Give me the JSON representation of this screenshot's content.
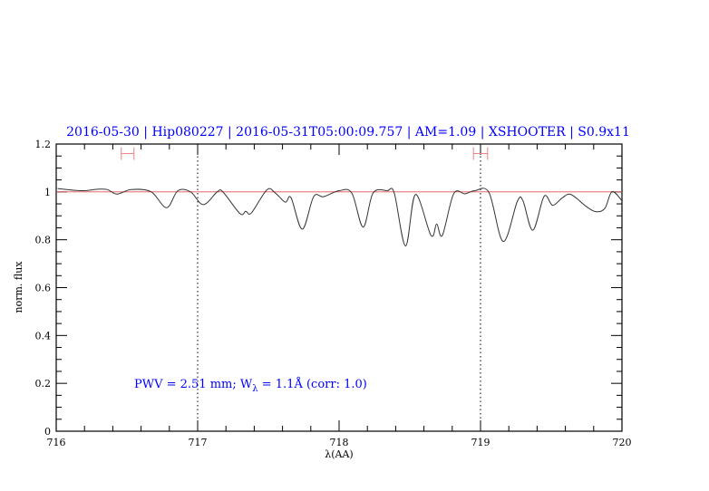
{
  "chart_data": {
    "type": "line",
    "title": "2016-05-30 | Hip080227 | 2016-05-31T05:00:09.757 | AM=1.09 | XSHOOTER | S0.9x11",
    "xlabel": "λ(AA)",
    "ylabel": "norm. flux",
    "xlim": [
      716,
      720
    ],
    "ylim": [
      0,
      1.2
    ],
    "xticks": [
      716,
      717,
      718,
      719,
      720
    ],
    "yticks": [
      0,
      0.2,
      0.4,
      0.6,
      0.8,
      1,
      1.2
    ],
    "ytick_labels": [
      "0",
      "0.2",
      "0.4",
      "0.6",
      "0.8",
      "1",
      "1.2"
    ],
    "grid": false,
    "continuum_level": 1,
    "vertical_markers": [
      717,
      719
    ],
    "error_bars": [
      {
        "x_range": [
          716.46,
          716.55
        ],
        "y": 1.16
      },
      {
        "x_range": [
          718.95,
          719.05
        ],
        "y": 1.16
      }
    ],
    "annotation": {
      "prefix": "PWV = 2.51 mm; W",
      "subscript": "λ",
      "suffix": " = 1.1Å (corr: 1.0)"
    },
    "colors": {
      "spectrum": "#333333",
      "continuum": "#e05050",
      "error_bar": "#f08080",
      "text": "#0000ff"
    },
    "series": [
      {
        "x": [
          716.01,
          716.18,
          716.29,
          716.36,
          716.43,
          716.53,
          716.67,
          716.78,
          716.86,
          716.95,
          717.04,
          717.14,
          717.18,
          717.3,
          717.34,
          717.38,
          717.49,
          717.55,
          717.62,
          717.66,
          717.74,
          717.82,
          717.89,
          718.0,
          718.09,
          718.17,
          718.24,
          718.34,
          718.39,
          718.47,
          718.54,
          718.65,
          718.69,
          718.73,
          718.81,
          718.89,
          718.96,
          719.06,
          719.16,
          719.26,
          719.3,
          719.37,
          719.45,
          719.51,
          719.58,
          719.64,
          719.75,
          719.82,
          719.88,
          719.93,
          720.0
        ],
        "y": [
          1.014,
          1.005,
          1.011,
          1.01,
          0.991,
          1.01,
          1.001,
          0.934,
          1.005,
          1.0,
          0.947,
          1.001,
          0.999,
          0.909,
          0.919,
          0.912,
          1.009,
          0.995,
          0.957,
          0.976,
          0.844,
          0.98,
          0.98,
          1.005,
          0.995,
          0.853,
          0.995,
          1.005,
          0.995,
          0.774,
          0.989,
          0.818,
          0.866,
          0.818,
          0.992,
          0.992,
          1.005,
          0.997,
          0.793,
          0.96,
          0.963,
          0.84,
          0.982,
          0.944,
          0.976,
          0.989,
          0.938,
          0.917,
          0.932,
          1.001,
          0.963
        ]
      }
    ]
  }
}
